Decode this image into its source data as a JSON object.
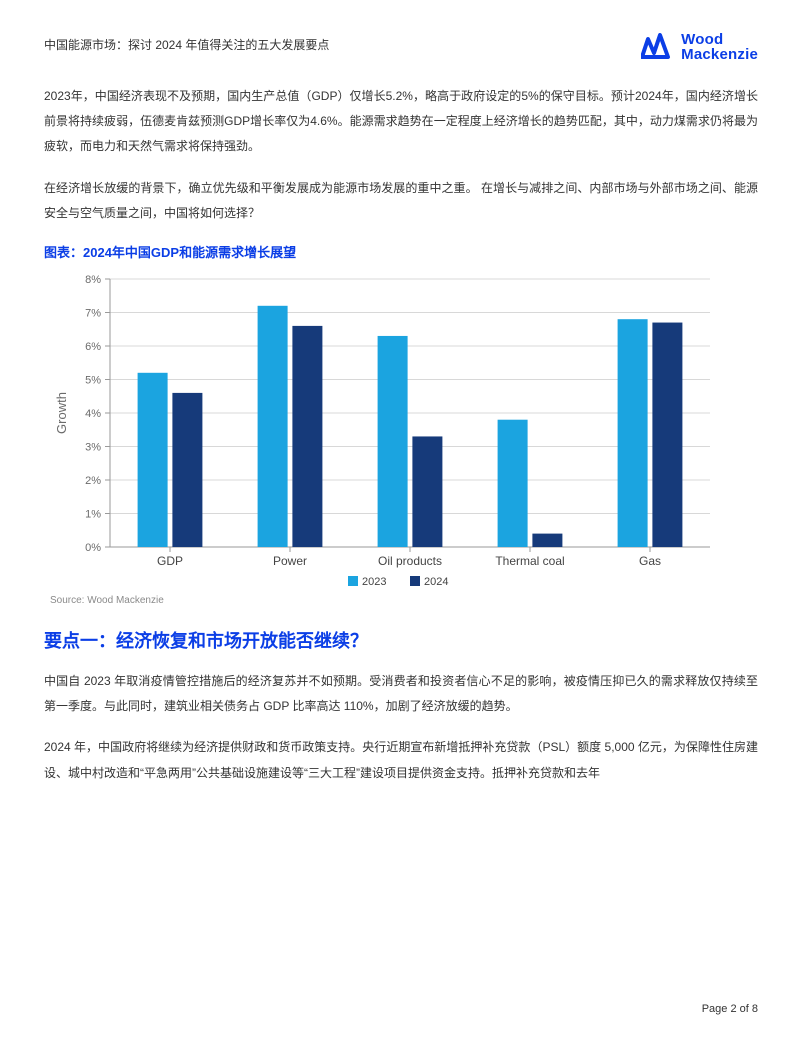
{
  "header": {
    "doc_title": "中国能源市场：探讨 2024 年值得关注的五大发展要点",
    "logo_top": "Wood",
    "logo_bottom": "Mackenzie",
    "logo_color": "#0b3ee6"
  },
  "paragraphs": {
    "p1": "2023年，中国经济表现不及预期，国内生产总值（GDP）仅增长5.2%，略高于政府设定的5%的保守目标。预计2024年，国内经济增长前景将持续疲弱，伍德麦肯兹预测GDP增长率仅为4.6%。能源需求趋势在一定程度上经济增长的趋势匹配，其中，动力煤需求仍将最为疲软，而电力和天然气需求将保持强劲。",
    "p2": "在经济增长放缓的背景下，确立优先级和平衡发展成为能源市场发展的重中之重。 在增长与减排之间、内部市场与外部市场之间、能源安全与空气质量之间，中国将如何选择？",
    "p3": "中国自 2023 年取消疫情管控措施后的经济复苏并不如预期。受消费者和投资者信心不足的影响，被疫情压抑已久的需求释放仅持续至第一季度。与此同时，建筑业相关债务占 GDP 比率高达 110%，加剧了经济放缓的趋势。",
    "p4": "2024 年，中国政府将继续为经济提供财政和货币政策支持。央行近期宣布新增抵押补充贷款（PSL）额度 5,000 亿元，为保障性住房建设、城中村改造和“平急两用”公共基础设施建设等“三大工程”建设项目提供资金支持。抵押补充贷款和去年"
  },
  "chart": {
    "title_label": "图表：",
    "title_text": "2024年中国GDP和能源需求增长展望",
    "type": "bar",
    "categories": [
      "GDP",
      "Power",
      "Oil products",
      "Thermal coal",
      "Gas"
    ],
    "series": [
      {
        "name": "2023",
        "color": "#1ba4e0",
        "values": [
          5.2,
          7.2,
          6.3,
          3.8,
          6.8
        ]
      },
      {
        "name": "2024",
        "color": "#163a7a",
        "values": [
          4.6,
          6.6,
          3.3,
          0.4,
          6.7
        ]
      }
    ],
    "ylabel": "Growth",
    "ylim": [
      0,
      8
    ],
    "ytick_step": 1,
    "ytick_labels": [
      "0%",
      "1%",
      "2%",
      "3%",
      "4%",
      "5%",
      "6%",
      "7%",
      "8%"
    ],
    "grid_color": "#d8d8d8",
    "axis_color": "#9a9a9a",
    "tick_color": "#6b6b6b",
    "background_color": "#ffffff",
    "source": "Source: Wood Mackenzie",
    "bar_group_width": 0.54,
    "bar_gap": 0.04,
    "label_fontsize": 12,
    "tick_fontsize": 11,
    "ylabel_fontsize": 13
  },
  "section": {
    "heading1": "要点一：经济恢复和市场开放能否继续？"
  },
  "footer": {
    "page_label": "Page 2 of 8"
  }
}
